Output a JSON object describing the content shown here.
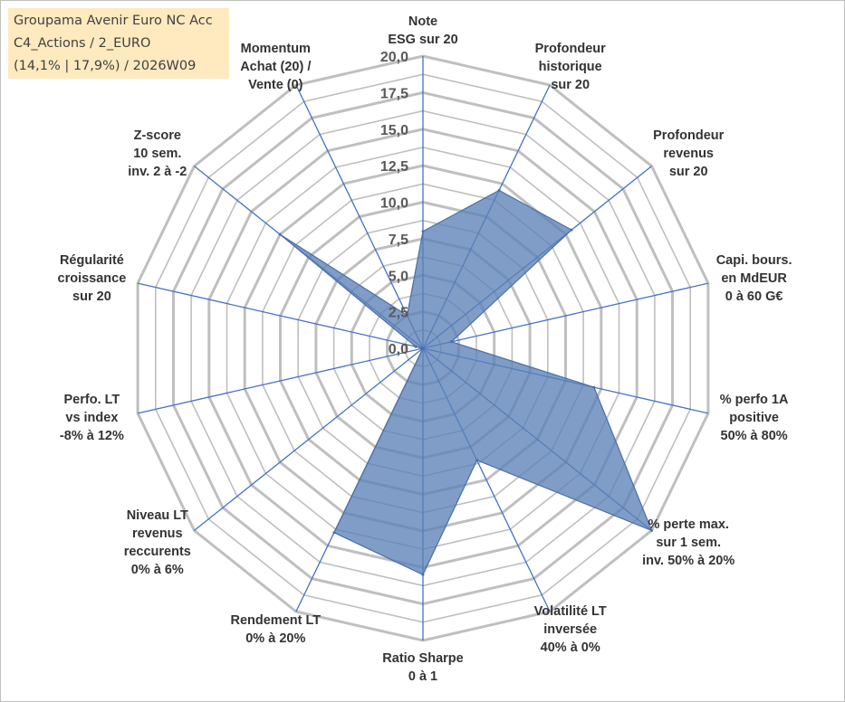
{
  "info_box": {
    "line1": "Groupama Avenir Euro NC Acc",
    "line2": "C4_Actions / 2_EURO",
    "line3": "(14,1% | 17,9%) / 2026W09"
  },
  "chart_data": {
    "type": "radar",
    "title": "",
    "rmin": 0,
    "rmax": 20,
    "tick_step": 2.5,
    "tick_labels": [
      "0,0",
      "2,5",
      "5,0",
      "7,5",
      "10,0",
      "12,5",
      "15,0",
      "17,5",
      "20,0"
    ],
    "grid": true,
    "legend": "none",
    "fill_color": "#5b82b6",
    "axis_color": "#4472c4",
    "grid_color": "#bfbfbf",
    "axes": [
      {
        "label": [
          "Note",
          "ESG sur 20"
        ],
        "value": 8.0
      },
      {
        "label": [
          "Profondeur",
          "historique",
          "sur 20"
        ],
        "value": 12.0
      },
      {
        "label": [
          "Profondeur",
          "revenus",
          "sur 20"
        ],
        "value": 13.0
      },
      {
        "label": [
          "Capi. bours.",
          "en MdEUR",
          "0 à 60 G€"
        ],
        "value": 2.0
      },
      {
        "label": [
          "% perfo 1A",
          "positive",
          "50% à 80%"
        ],
        "value": 12.0
      },
      {
        "label": [
          "% perte max.",
          "sur 1 sem.",
          "inv. 50% à 20%"
        ],
        "value": 20.0
      },
      {
        "label": [
          "Volatilité LT",
          "inversée",
          "40% à 0%"
        ],
        "value": 8.5
      },
      {
        "label": [
          "Ratio Sharpe",
          "0 à 1"
        ],
        "value": 15.5
      },
      {
        "label": [
          "Rendement LT",
          "0% à 20%"
        ],
        "value": 14.0
      },
      {
        "label": [
          "Niveau LT",
          "revenus",
          "reccurents",
          "0% à 6%"
        ],
        "value": 0.0
      },
      {
        "label": [
          "Perfo. LT",
          "vs index",
          "-8% à 12%"
        ],
        "value": 0.0
      },
      {
        "label": [
          "Régularité",
          "croissance",
          "sur 20"
        ],
        "value": 0.5
      },
      {
        "label": [
          "Z-score",
          "10 sem.",
          "inv. 2 à -2"
        ],
        "value": 12.5
      },
      {
        "label": [
          "Momentum",
          "Achat (20) /",
          "Vente (0)"
        ],
        "value": 2.5
      }
    ]
  }
}
